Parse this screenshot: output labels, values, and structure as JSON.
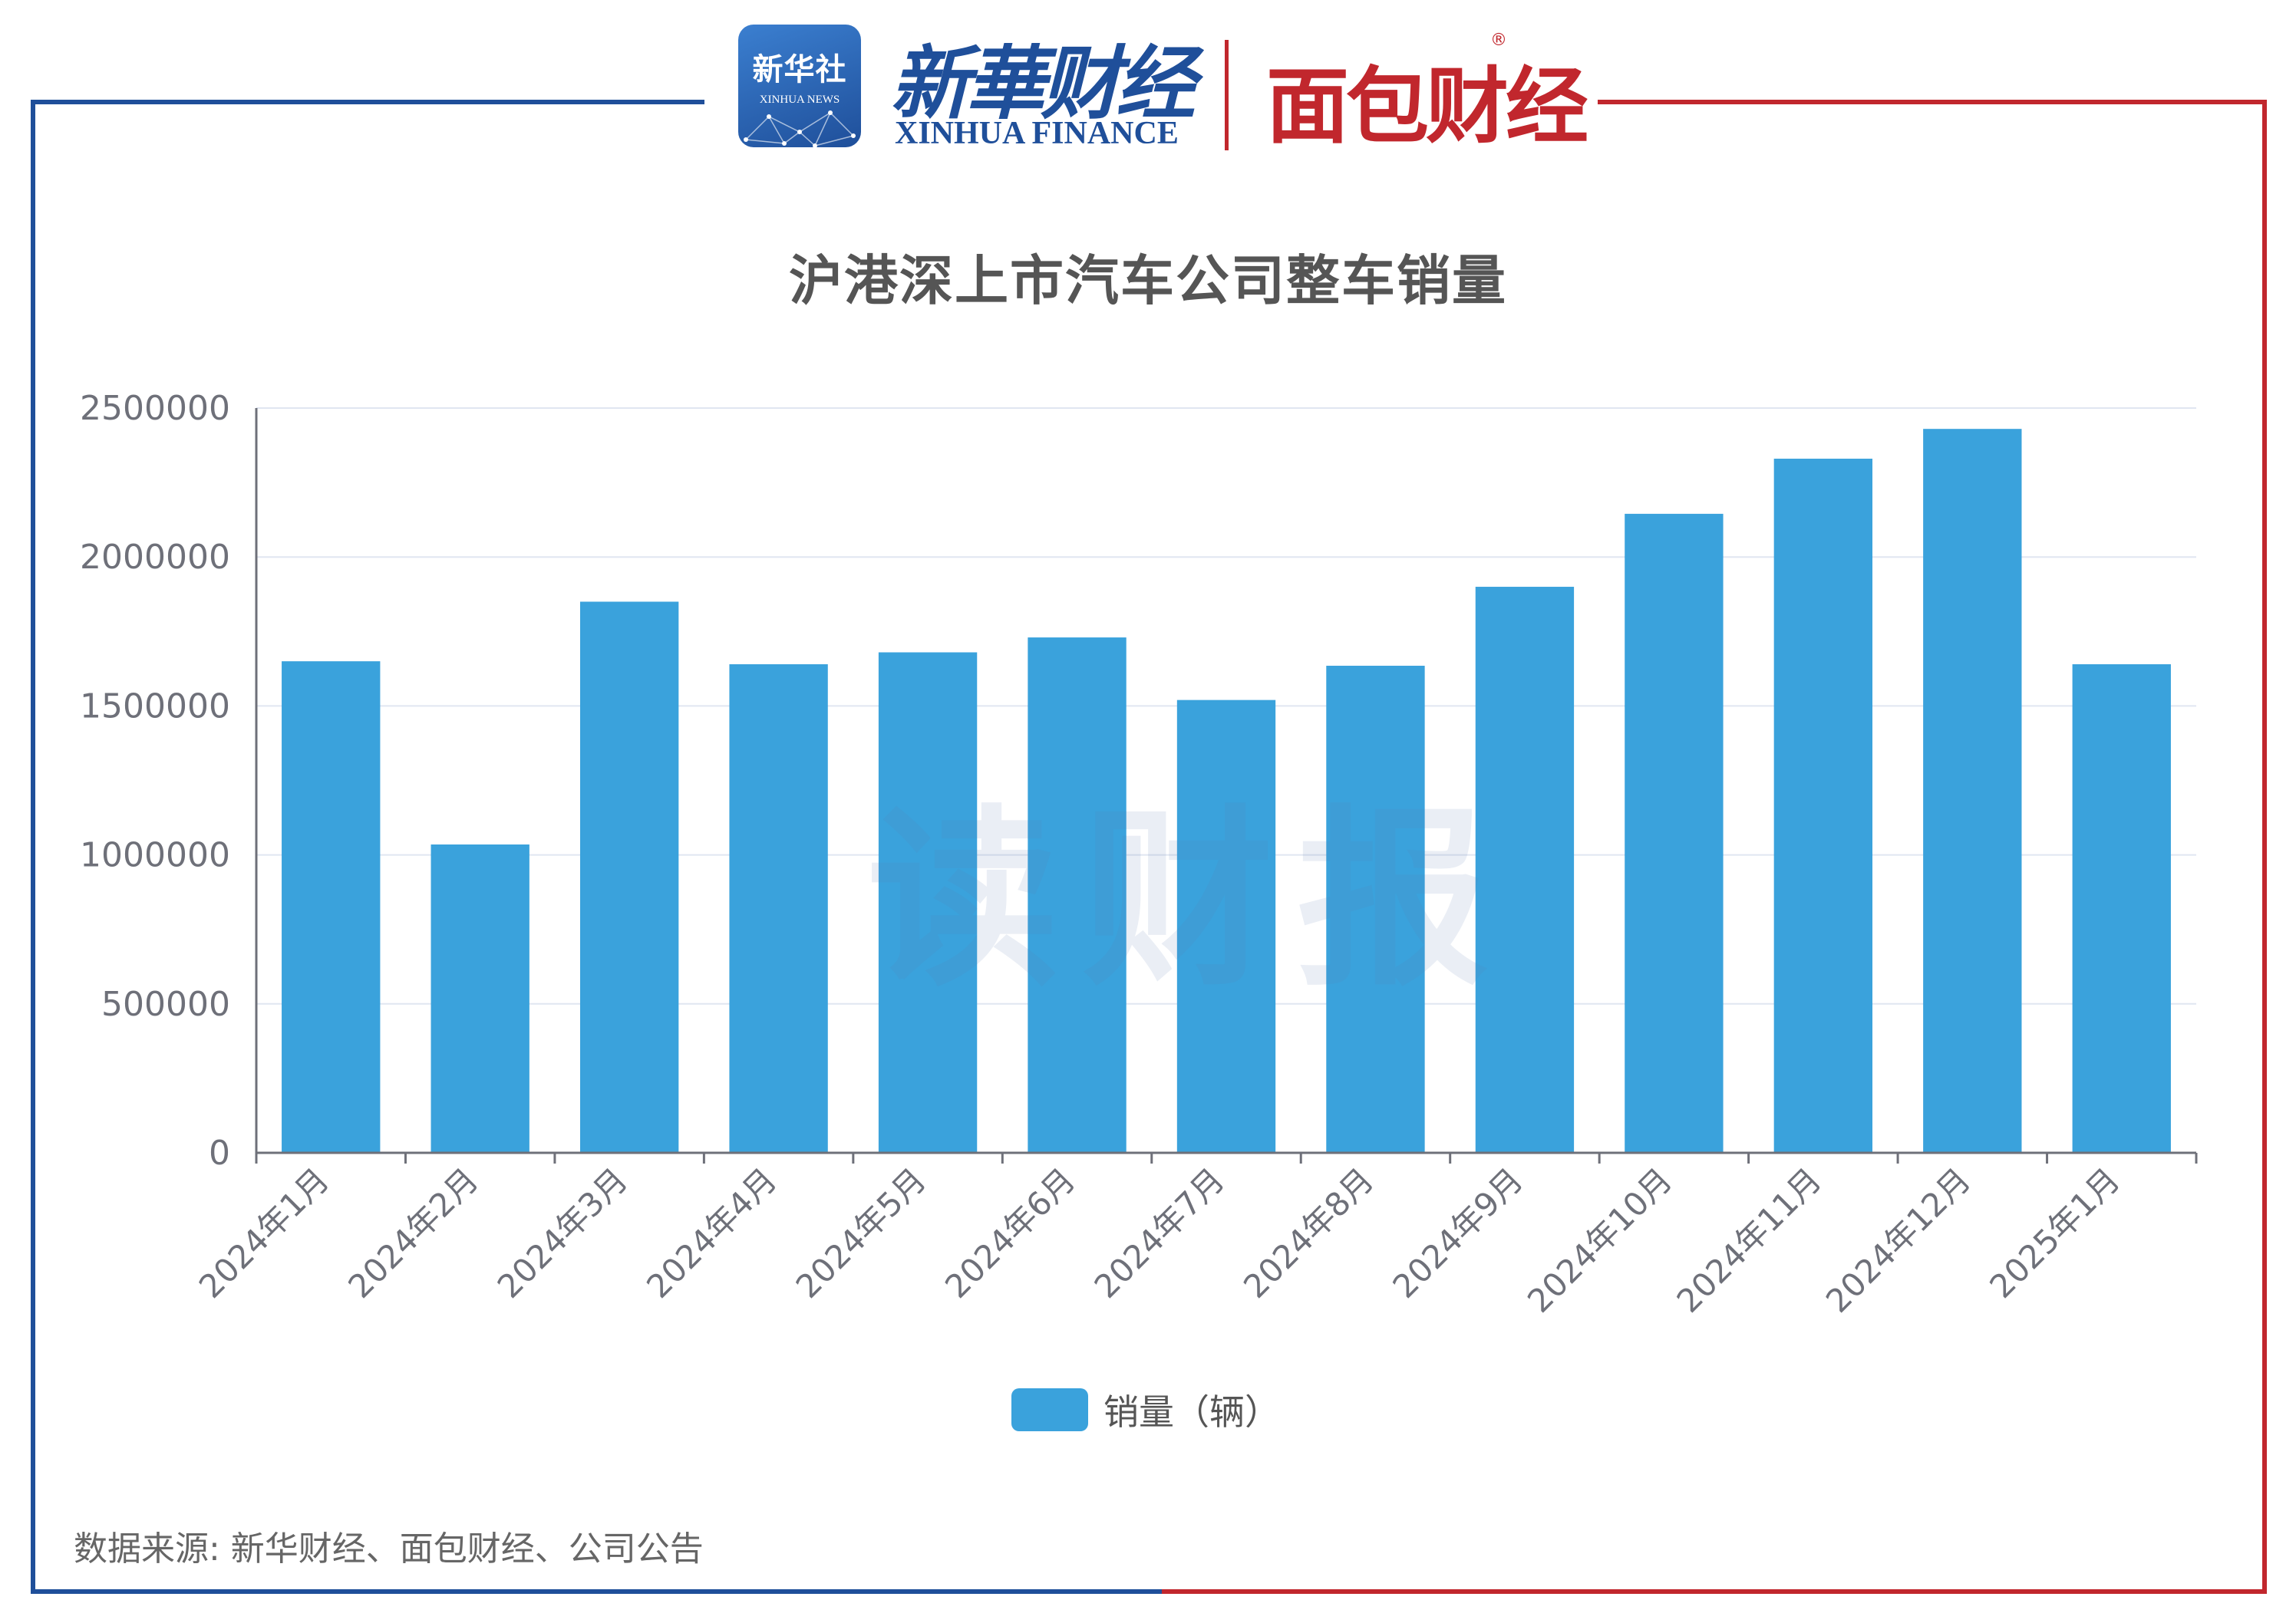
{
  "header": {
    "xinhua_badge_cn": "新华社",
    "xinhua_badge_en": "XINHUA NEWS",
    "xinhua_finance_cn": "新華财经",
    "xinhua_finance_en": "XINHUA FINANCE",
    "mianbao_logo": "面包财经",
    "registered_mark": "®"
  },
  "watermark": "读财报",
  "source_note": "数据来源: 新华财经、面包财经、公司公告",
  "colors": {
    "bar": "#3aa2dc",
    "frame_left": "#1f4f9a",
    "frame_right": "#c1272d"
  },
  "chart_data": {
    "type": "bar",
    "title": "沪港深上市汽车公司整车销量",
    "categories": [
      "2024年1月",
      "2024年2月",
      "2024年3月",
      "2024年4月",
      "2024年5月",
      "2024年6月",
      "2024年7月",
      "2024年8月",
      "2024年9月",
      "2024年10月",
      "2024年11月",
      "2024年12月",
      "2025年1月"
    ],
    "series": [
      {
        "name": "销量（辆）",
        "values": [
          1650000,
          1035000,
          1850000,
          1640000,
          1680000,
          1730000,
          1520000,
          1635000,
          1900000,
          2145000,
          2330000,
          2430000,
          1640000
        ]
      }
    ],
    "yticks": [
      "0",
      "500000",
      "1000000",
      "1500000",
      "2000000",
      "2500000"
    ],
    "ylim": [
      0,
      2500000
    ],
    "grid": true,
    "legend_position": "bottom-center"
  }
}
